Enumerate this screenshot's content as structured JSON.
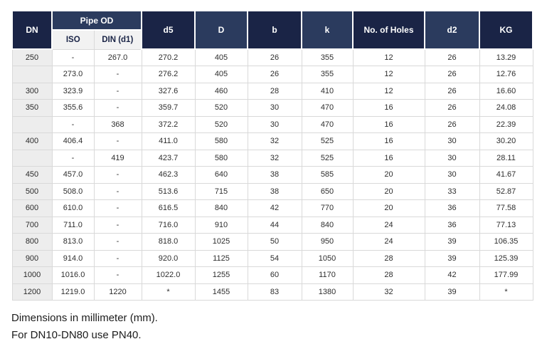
{
  "colors": {
    "header_dark_navy": "#1a2446",
    "header_light_navy": "#2b3b5e",
    "subheader_bg": "#f2f2f2",
    "dn_column_bg": "#ededed",
    "grid_border": "#d9d9d9",
    "header_text": "#ffffff",
    "body_text": "#2e2e2e"
  },
  "table": {
    "header": {
      "dn": "DN",
      "pipe_od": "Pipe OD",
      "iso": "ISO",
      "din": "DIN (d1)",
      "d5": "d5",
      "D": "D",
      "b": "b",
      "k": "k",
      "holes": "No. of Holes",
      "d2": "d2",
      "kg": "KG"
    },
    "col_keys": [
      "dn",
      "iso",
      "din",
      "d5",
      "D",
      "b",
      "k",
      "holes",
      "d2",
      "kg"
    ],
    "rows": [
      [
        "250",
        "-",
        "267.0",
        "270.2",
        "405",
        "26",
        "355",
        "12",
        "26",
        "13.29"
      ],
      [
        "",
        "273.0",
        "-",
        "276.2",
        "405",
        "26",
        "355",
        "12",
        "26",
        "12.76"
      ],
      [
        "300",
        "323.9",
        "-",
        "327.6",
        "460",
        "28",
        "410",
        "12",
        "26",
        "16.60"
      ],
      [
        "350",
        "355.6",
        "-",
        "359.7",
        "520",
        "30",
        "470",
        "16",
        "26",
        "24.08"
      ],
      [
        "",
        "-",
        "368",
        "372.2",
        "520",
        "30",
        "470",
        "16",
        "26",
        "22.39"
      ],
      [
        "400",
        "406.4",
        "-",
        "411.0",
        "580",
        "32",
        "525",
        "16",
        "30",
        "30.20"
      ],
      [
        "",
        "-",
        "419",
        "423.7",
        "580",
        "32",
        "525",
        "16",
        "30",
        "28.11"
      ],
      [
        "450",
        "457.0",
        "-",
        "462.3",
        "640",
        "38",
        "585",
        "20",
        "30",
        "41.67"
      ],
      [
        "500",
        "508.0",
        "-",
        "513.6",
        "715",
        "38",
        "650",
        "20",
        "33",
        "52.87"
      ],
      [
        "600",
        "610.0",
        "-",
        "616.5",
        "840",
        "42",
        "770",
        "20",
        "36",
        "77.58"
      ],
      [
        "700",
        "711.0",
        "-",
        "716.0",
        "910",
        "44",
        "840",
        "24",
        "36",
        "77.13"
      ],
      [
        "800",
        "813.0",
        "-",
        "818.0",
        "1025",
        "50",
        "950",
        "24",
        "39",
        "106.35"
      ],
      [
        "900",
        "914.0",
        "-",
        "920.0",
        "1125",
        "54",
        "1050",
        "28",
        "39",
        "125.39"
      ],
      [
        "1000",
        "1016.0",
        "-",
        "1022.0",
        "1255",
        "60",
        "1170",
        "28",
        "42",
        "177.99"
      ],
      [
        "1200",
        "1219.0",
        "1220",
        "*",
        "1455",
        "83",
        "1380",
        "32",
        "39",
        "*"
      ]
    ]
  },
  "notes": {
    "line1": "Dimensions in millimeter (mm).",
    "line2": "For DN10-DN80 use PN40."
  }
}
